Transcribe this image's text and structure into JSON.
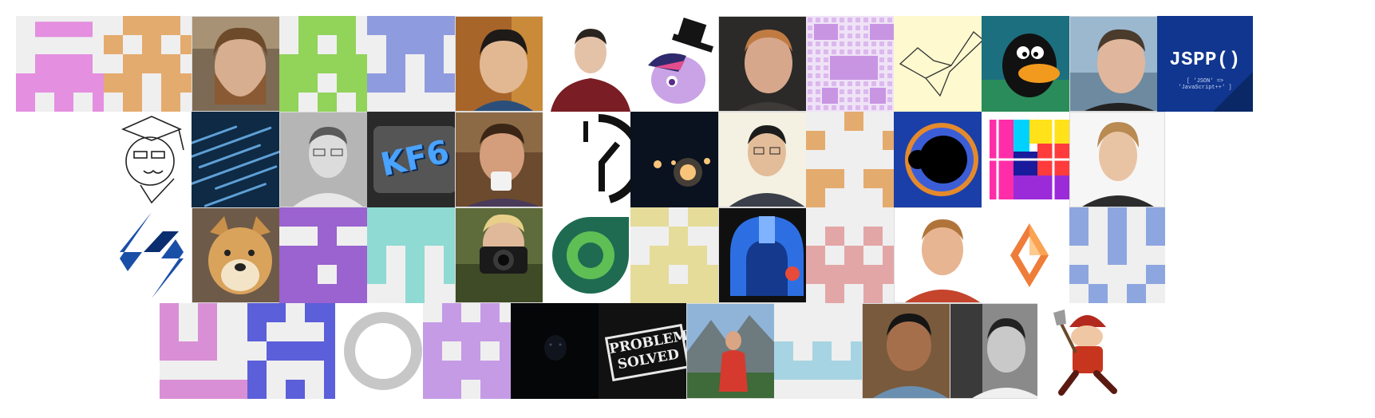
{
  "avatar_grid": {
    "jspp_logo": {
      "title": "JSPP()",
      "subtitle": "[ 'JSON' => 'JavaScript++' ]"
    },
    "kf6_logo": {
      "text": "KF6"
    },
    "problem_solved_stamp": {
      "line1": "PROBLEM",
      "line2": "SOLVED"
    }
  }
}
